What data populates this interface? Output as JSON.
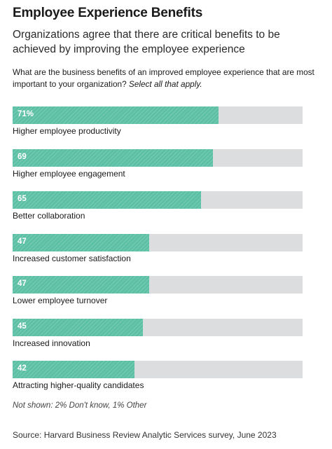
{
  "title": "Employee Experience Benefits",
  "subtitle": "Organizations agree that there are critical benefits to be achieved by improving the employee experience",
  "question": {
    "text": "What are the business benefits of an improved employee experience that are most important to your organization?",
    "instruction": "Select all that apply."
  },
  "colors": {
    "bar_fill": "#5bc0a4",
    "bar_track": "#dcdddf",
    "value_text": "#ffffff"
  },
  "chart_data": {
    "type": "bar",
    "orientation": "horizontal",
    "unit": "%",
    "xlim": [
      0,
      100
    ],
    "grid": false,
    "categories": [
      "Higher employee productivity",
      "Higher employee engagement",
      "Better collaboration",
      "Increased customer satisfaction",
      "Lower employee turnover",
      "Increased innovation",
      "Attracting higher-quality candidates"
    ],
    "values": [
      71,
      69,
      65,
      47,
      47,
      45,
      42
    ],
    "value_labels": [
      "71%",
      "69",
      "65",
      "47",
      "47",
      "45",
      "42"
    ]
  },
  "note": "Not shown: 2% Don't know, 1% Other",
  "source": "Source: Harvard Business Review Analytic Services survey, June 2023"
}
